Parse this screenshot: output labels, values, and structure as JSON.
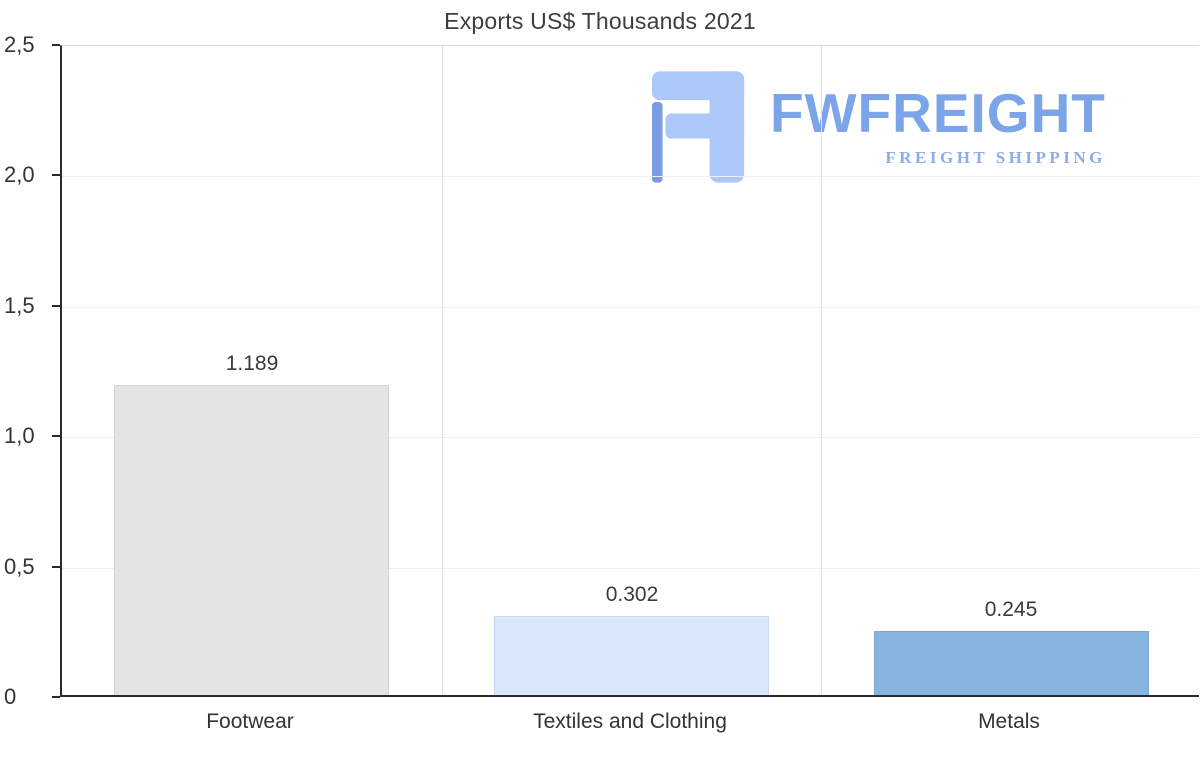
{
  "title": "Exports US$ Thousands 2021",
  "watermark": {
    "brand": "FWFREIGHT",
    "tagline": "FREIGHT SHIPPING",
    "brand_color": "#7ba4e9",
    "tagline_color": "#8badea",
    "icon_color": "#abc8f7",
    "icon_accent_color": "#7b9ce4"
  },
  "chart_data": {
    "type": "bar",
    "title": "Exports US$ Thousands 2021",
    "categories": [
      "Footwear",
      "Textiles and Clothing",
      "Metals"
    ],
    "values": [
      1.189,
      0.302,
      0.245
    ],
    "value_labels": [
      "1.189",
      "0.302",
      "0.245"
    ],
    "bar_colors": [
      "#e4e4e4",
      "#d9e8fb",
      "#89b3df"
    ],
    "bar_border_colors": [
      "#d6d6d6",
      "#c6dbf6",
      "#7aa8d6"
    ],
    "xlabel": "",
    "ylabel": "",
    "ylim": [
      0,
      2.5
    ],
    "y_tick_labels": [
      "2,5",
      "2,0",
      "1,5",
      "1,0",
      "0,5",
      "0"
    ],
    "y_tick_values": [
      2.5,
      2.0,
      1.5,
      1.0,
      0.5,
      0
    ],
    "grid": "vertical category separators, faint horizontal gridlines, dark left and bottom axis lines",
    "legend": "none"
  }
}
